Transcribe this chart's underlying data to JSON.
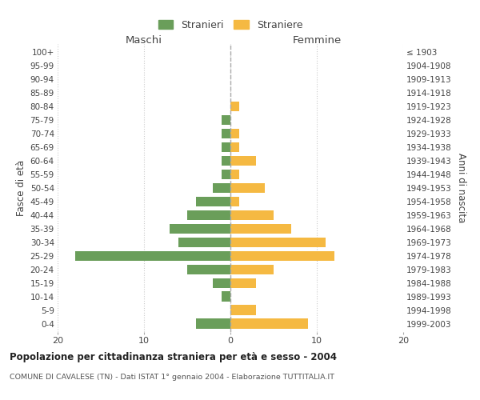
{
  "age_groups": [
    "0-4",
    "5-9",
    "10-14",
    "15-19",
    "20-24",
    "25-29",
    "30-34",
    "35-39",
    "40-44",
    "45-49",
    "50-54",
    "55-59",
    "60-64",
    "65-69",
    "70-74",
    "75-79",
    "80-84",
    "85-89",
    "90-94",
    "95-99",
    "100+"
  ],
  "birth_years": [
    "1999-2003",
    "1994-1998",
    "1989-1993",
    "1984-1988",
    "1979-1983",
    "1974-1978",
    "1969-1973",
    "1964-1968",
    "1959-1963",
    "1954-1958",
    "1949-1953",
    "1944-1948",
    "1939-1943",
    "1934-1938",
    "1929-1933",
    "1924-1928",
    "1919-1923",
    "1914-1918",
    "1909-1913",
    "1904-1908",
    "≤ 1903"
  ],
  "maschi": [
    4,
    0,
    1,
    2,
    5,
    18,
    6,
    7,
    5,
    4,
    2,
    1,
    1,
    1,
    1,
    1,
    0,
    0,
    0,
    0,
    0
  ],
  "femmine": [
    9,
    3,
    0,
    3,
    5,
    12,
    11,
    7,
    5,
    1,
    4,
    1,
    3,
    1,
    1,
    0,
    1,
    0,
    0,
    0,
    0
  ],
  "color_maschi": "#6a9e5a",
  "color_femmine": "#f5b942",
  "title_main": "Popolazione per cittadinanza straniera per età e sesso - 2004",
  "title_sub": "COMUNE DI CAVALESE (TN) - Dati ISTAT 1° gennaio 2004 - Elaborazione TUTTITALIA.IT",
  "label_maschi": "Maschi",
  "label_femmine": "Femmine",
  "legend_stranieri": "Stranieri",
  "legend_straniere": "Straniere",
  "ylabel_left": "Fasce di età",
  "ylabel_right": "Anni di nascita",
  "xlim": 20,
  "background_color": "#ffffff",
  "grid_color": "#cccccc"
}
